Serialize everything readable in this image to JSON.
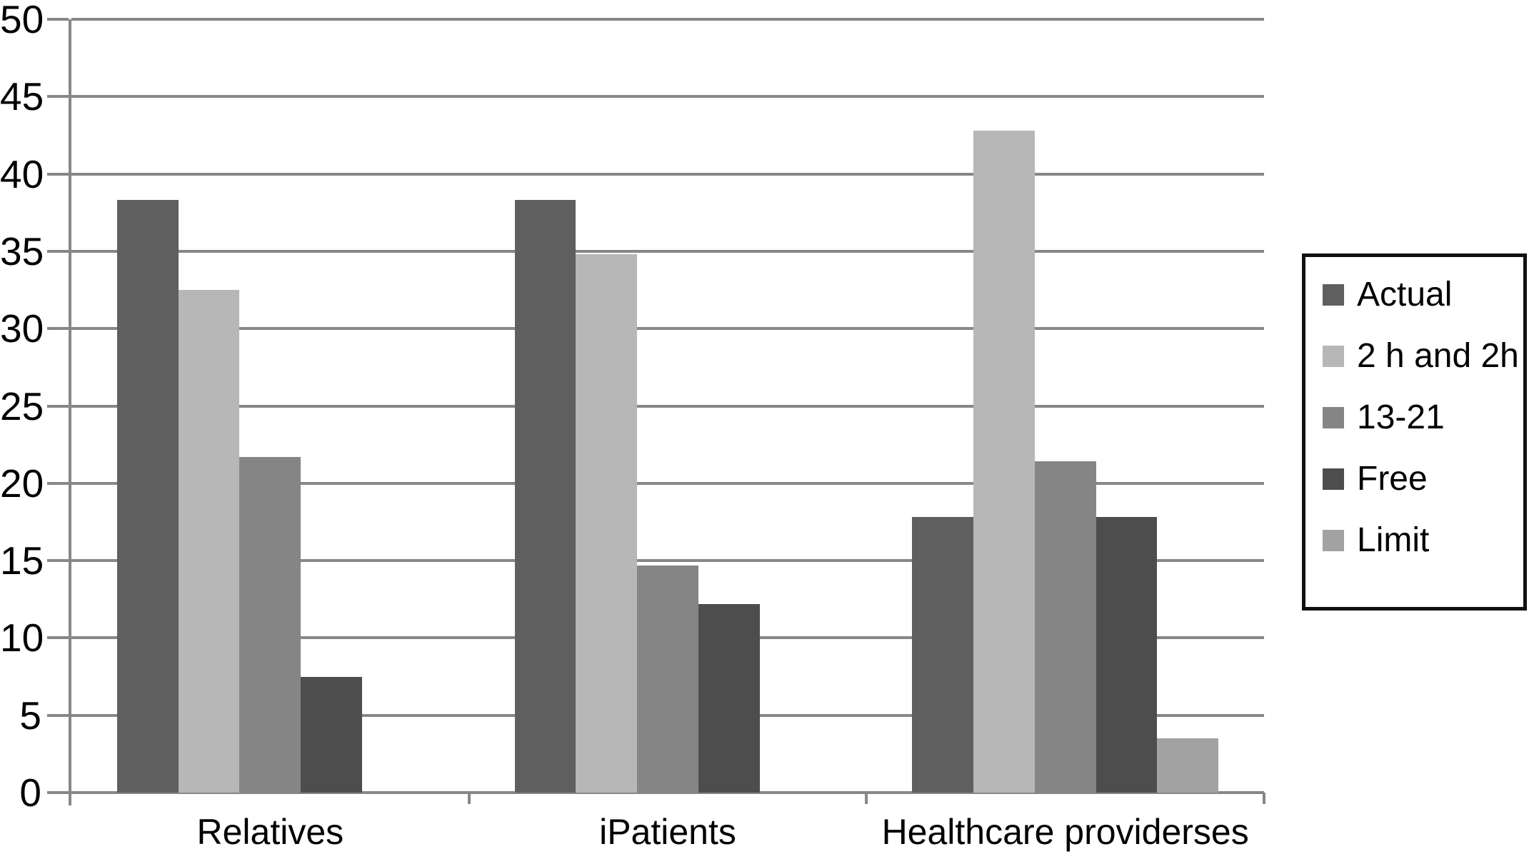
{
  "chart_data": {
    "type": "bar",
    "title": "",
    "categories": [
      "Relatives",
      "iPatients",
      "Healthcare providerses"
    ],
    "series": [
      {
        "name": "Actual",
        "color": "#5f5f5f",
        "values": [
          38.3,
          38.3,
          17.8
        ]
      },
      {
        "name": "2 h and 2h",
        "color": "#b7b7b7",
        "values": [
          32.5,
          34.8,
          42.8
        ]
      },
      {
        "name": "13-21",
        "color": "#858585",
        "values": [
          21.7,
          14.7,
          21.4
        ]
      },
      {
        "name": "Free",
        "color": "#4d4d4d",
        "values": [
          7.5,
          12.2,
          17.8
        ]
      },
      {
        "name": "Limit",
        "color": "#a2a2a2",
        "values": [
          0,
          0,
          3.5
        ]
      }
    ],
    "ylim": [
      0,
      50
    ],
    "ytick_step": 5,
    "ytick_labels": [
      "0",
      "5",
      "10",
      "15",
      "20",
      "25",
      "30",
      "35",
      "40",
      "45",
      "50"
    ],
    "grid": true,
    "legend_position": "right",
    "legend_labels": [
      "Actual",
      "2 h and 2h",
      "13-21",
      "Free",
      "Limit"
    ]
  },
  "style": {
    "axis_color": "#878787",
    "grid_color": "#878787",
    "legend_border_color": "#111111",
    "text_color": "#000000",
    "background_color": "#ffffff"
  }
}
